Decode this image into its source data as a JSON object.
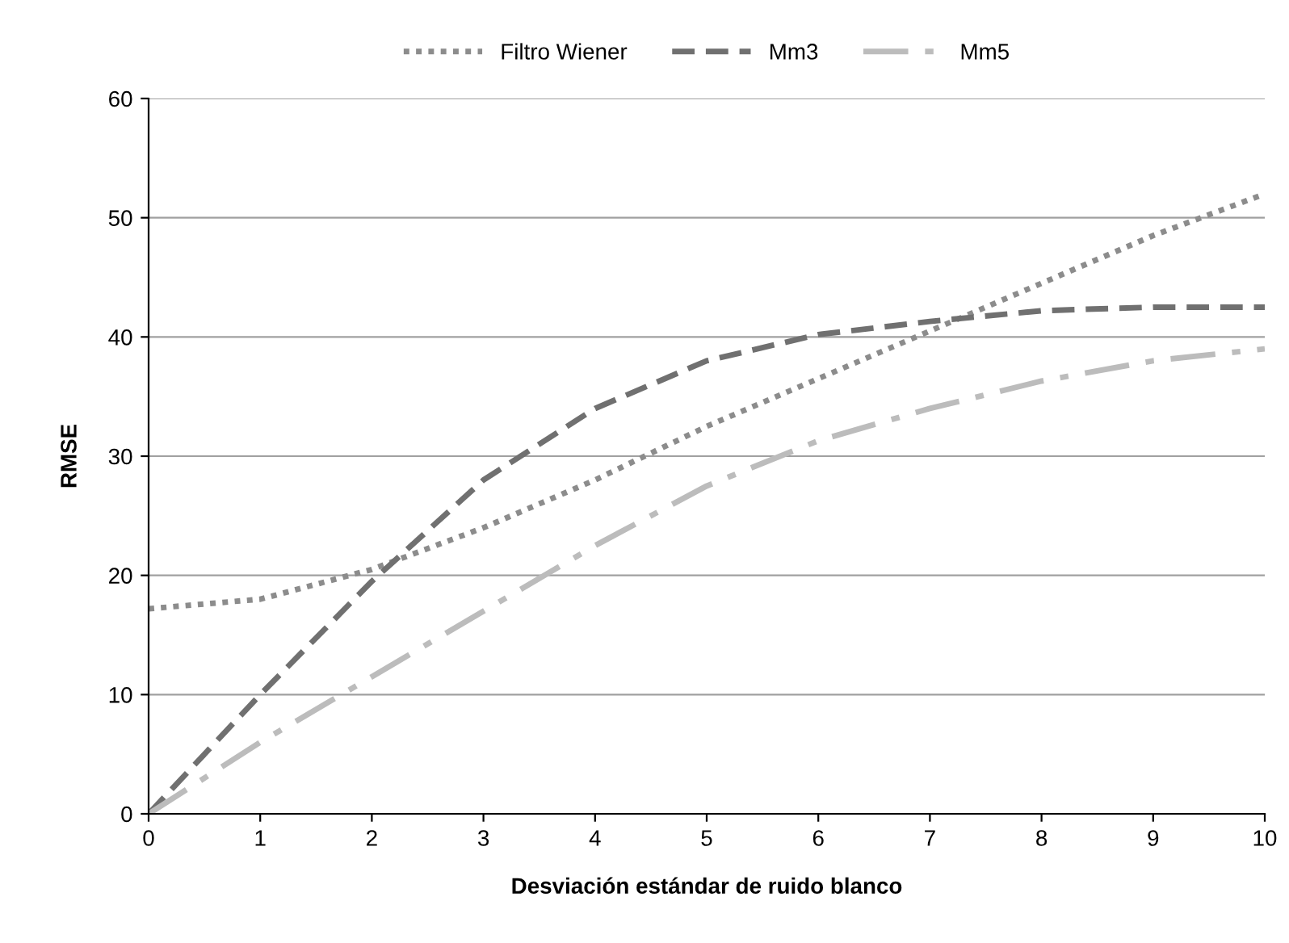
{
  "chart_data": {
    "type": "line",
    "xlabel": "Desviación estándar de ruido blanco",
    "ylabel": "RMSE",
    "x": [
      0,
      1,
      2,
      3,
      4,
      5,
      6,
      7,
      8,
      9,
      10
    ],
    "series": [
      {
        "name": "Filtro Wiener",
        "color": "#8c8c8c",
        "line_style": "dotted",
        "values": [
          17.2,
          18,
          20.5,
          24,
          28,
          32.5,
          36.5,
          40.5,
          44.5,
          48.5,
          52
        ]
      },
      {
        "name": "Mm3",
        "color": "#707070",
        "line_style": "dashed",
        "values": [
          0,
          10,
          19.5,
          28,
          34,
          38,
          40.2,
          41.3,
          42.2,
          42.5,
          42.5
        ]
      },
      {
        "name": "Mm5",
        "color": "#bcbcbc",
        "line_style": "dashdot",
        "values": [
          0,
          6,
          11.5,
          17,
          22.5,
          27.5,
          31.3,
          34,
          36.3,
          38,
          39
        ]
      }
    ],
    "xlim": [
      0,
      10
    ],
    "xticks": [
      0,
      1,
      2,
      3,
      4,
      5,
      6,
      7,
      8,
      9,
      10
    ],
    "ylim": [
      0,
      60
    ],
    "yticks": [
      0,
      10,
      20,
      30,
      40,
      50,
      60
    ],
    "grid": "y",
    "legend": "top",
    "marker": "none"
  }
}
